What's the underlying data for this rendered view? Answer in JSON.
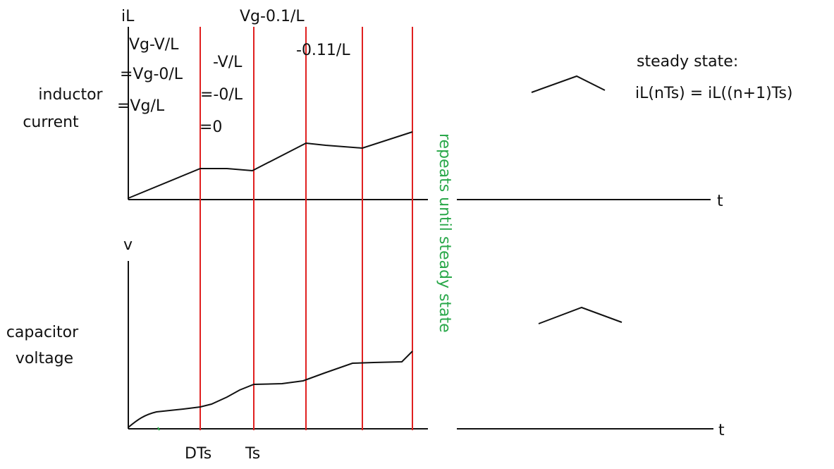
{
  "labels": {
    "inductor_line1": "inductor",
    "inductor_line2": "current",
    "capacitor_line1": "capacitor",
    "capacitor_line2": "voltage",
    "axis_iL": "iL",
    "axis_v": "v",
    "axis_t_top": "t",
    "axis_t_bottom": "t",
    "tick_DTs": "DTs",
    "tick_Ts": "Ts"
  },
  "slopes": {
    "s1_line1": "Vg-V/L",
    "s1_line2": "=Vg-0/L",
    "s1_line3": "=Vg/L",
    "s2_line1": "-V/L",
    "s2_line2": "=-0/L",
    "s2_line3": "=0",
    "s3": "Vg-0.1/L",
    "s4": "-0.11/L"
  },
  "annotation": {
    "repeats": "repeats until steady state",
    "steady_title": "steady state:",
    "steady_formula": "iL(nTs) = iL((n+1)Ts)"
  },
  "colors": {
    "divider": "#e02020",
    "annotation": "#2aa84a",
    "ink": "#111111"
  }
}
